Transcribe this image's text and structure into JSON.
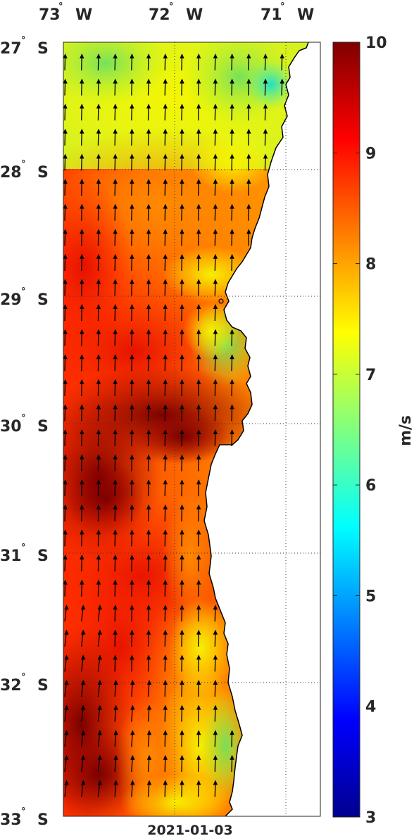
{
  "map": {
    "lon_labels": [
      {
        "deg": "73",
        "dir": "W"
      },
      {
        "deg": "72",
        "dir": "W"
      },
      {
        "deg": "71",
        "dir": "W"
      }
    ],
    "lat_labels": [
      {
        "deg": "27",
        "dir": "S"
      },
      {
        "deg": "28",
        "dir": "S"
      },
      {
        "deg": "29",
        "dir": "S"
      },
      {
        "deg": "30",
        "dir": "S"
      },
      {
        "deg": "31",
        "dir": "S"
      },
      {
        "deg": "32",
        "dir": "S"
      },
      {
        "deg": "33",
        "dir": "S"
      }
    ],
    "degree_symbol": "°",
    "date": "2021-01-03",
    "field": "wind speed",
    "vector_direction": "northward (southerly wind)"
  },
  "colorbar": {
    "unit": "m/s",
    "ticks": [
      "10",
      "9",
      "8",
      "7",
      "6",
      "5",
      "4",
      "3"
    ],
    "min": 3,
    "max": 10,
    "colormap": "jet"
  }
}
